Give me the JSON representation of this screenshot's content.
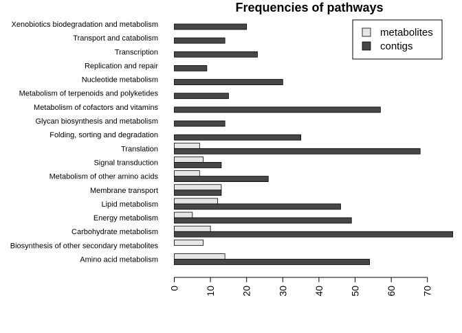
{
  "chart_data": {
    "type": "bar",
    "orientation": "horizontal",
    "title": "Frequencies of pathways",
    "xlabel": "",
    "ylabel": "",
    "xlim": [
      0,
      76
    ],
    "x_ticks": [
      0,
      10,
      20,
      30,
      40,
      50,
      60,
      70
    ],
    "grid": false,
    "legend_position": "top-right",
    "categories": [
      "Amino acid metabolism",
      "Biosynthesis of other secondary metabolites",
      "Carbohydrate metabolism",
      "Energy metabolism",
      "Lipid metabolism",
      "Membrane transport",
      "Metabolism of other amino acids",
      "Signal transduction",
      "Translation",
      "Folding, sorting and degradation",
      "Glycan biosynthesis and metabolism",
      "Metabolism of cofactors and vitamins",
      "Metabolism of terpenoids and polyketides",
      "Nucleotide metabolism",
      "Replication and repair",
      "Transcription",
      "Transport and catabolism",
      "Xenobiotics biodegradation and metabolism"
    ],
    "series": [
      {
        "name": "metabolites",
        "color": "#e6e6e6",
        "values": [
          14,
          8,
          10,
          5,
          12,
          13,
          7,
          8,
          7,
          0,
          0,
          0,
          0,
          0,
          0,
          0,
          0,
          0
        ]
      },
      {
        "name": "contigs",
        "color": "#474747",
        "values": [
          54,
          0,
          77,
          49,
          46,
          13,
          26,
          13,
          68,
          35,
          14,
          57,
          15,
          30,
          9,
          23,
          14,
          20
        ]
      }
    ]
  }
}
